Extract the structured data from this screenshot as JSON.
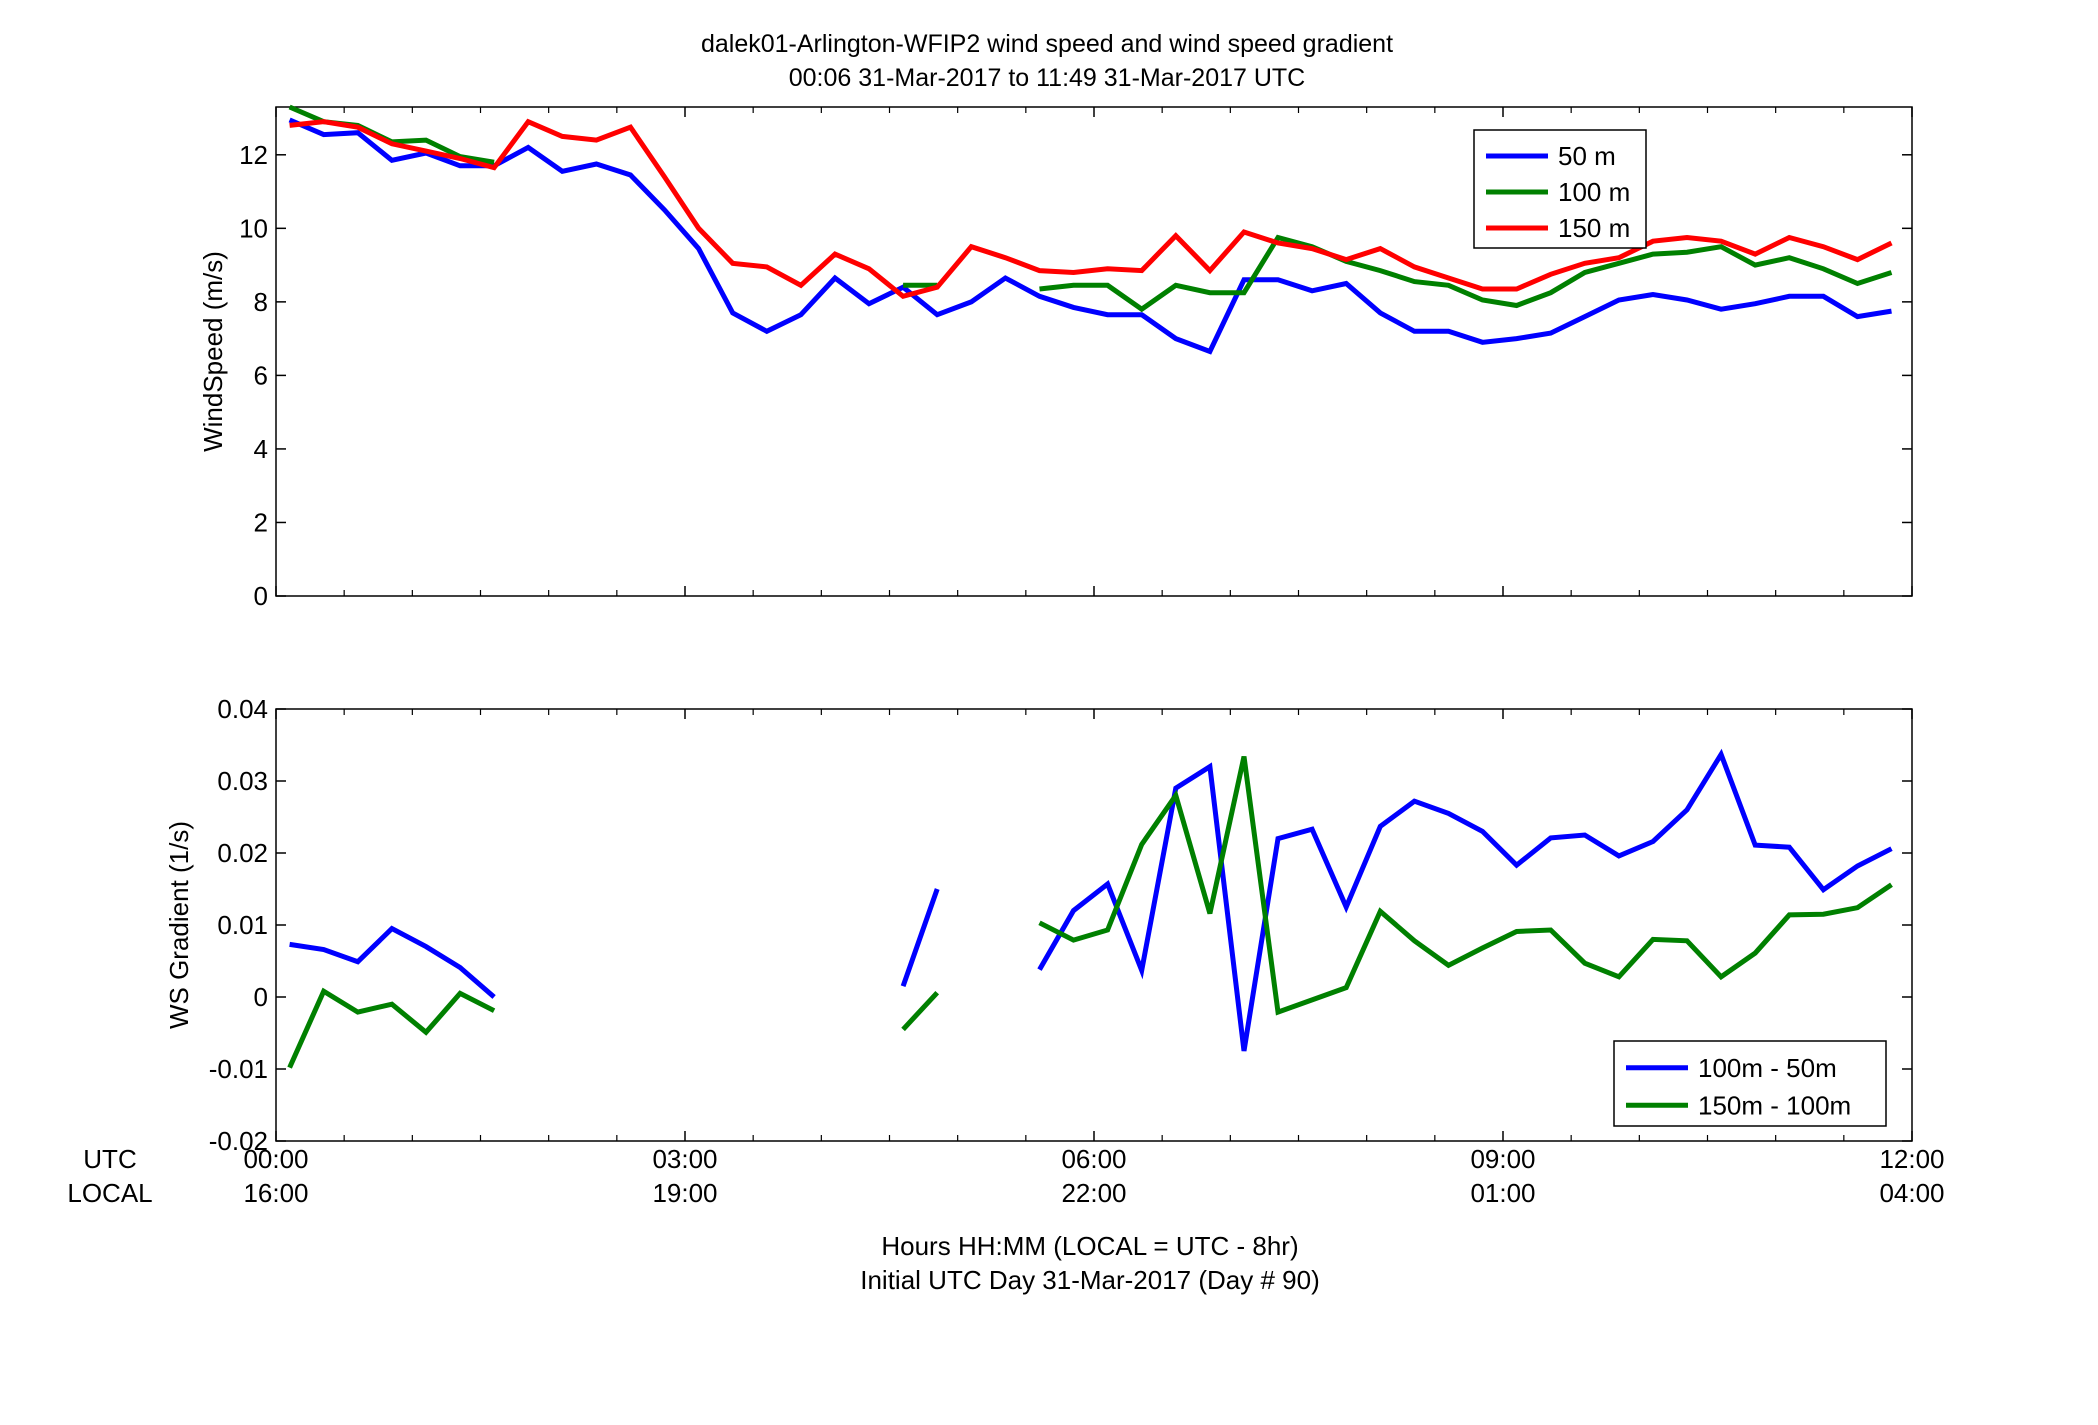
{
  "figure": {
    "title_line1": "dalek01-Arlington-WFIP2  wind speed and wind speed gradient",
    "title_line2": "00:06 31-Mar-2017 to 11:49 31-Mar-2017  UTC",
    "row_label_utc": "UTC",
    "row_label_local": "LOCAL",
    "xlabel_line1": "Hours HH:MM  (LOCAL = UTC - 8hr)",
    "xlabel_line2": "Initial UTC Day 31-Mar-2017 (Day # 90)"
  },
  "chart_data": [
    {
      "type": "line",
      "ylabel": "WindSpeed (m/s)",
      "xlim": [
        0,
        12
      ],
      "ylim": [
        0,
        13.3
      ],
      "x_unit": "hours UTC",
      "x_ticks": [
        0,
        3,
        6,
        9,
        12
      ],
      "x_tick_labels_utc": [
        "00:00",
        "03:00",
        "06:00",
        "09:00",
        "12:00"
      ],
      "x_tick_labels_local": [
        "16:00",
        "19:00",
        "22:00",
        "01:00",
        "04:00"
      ],
      "y_ticks": [
        0,
        2,
        4,
        6,
        8,
        10,
        12
      ],
      "y_tick_labels": [
        "0",
        "2",
        "4",
        "6",
        "8",
        "10",
        "12"
      ],
      "legend_position": "top-right",
      "grid": false,
      "x": [
        0.1,
        0.35,
        0.6,
        0.85,
        1.1,
        1.35,
        1.6,
        1.85,
        2.1,
        2.35,
        2.6,
        2.85,
        3.1,
        3.35,
        3.6,
        3.85,
        4.1,
        4.35,
        4.6,
        4.85,
        5.1,
        5.35,
        5.6,
        5.85,
        6.1,
        6.35,
        6.6,
        6.85,
        7.1,
        7.35,
        7.6,
        7.85,
        8.1,
        8.35,
        8.6,
        8.85,
        9.1,
        9.35,
        9.6,
        9.85,
        10.1,
        10.35,
        10.6,
        10.85,
        11.1,
        11.35,
        11.6,
        11.85
      ],
      "series": [
        {
          "name": "50 m",
          "color": "#0000ff",
          "values": [
            12.95,
            12.55,
            12.6,
            11.85,
            12.05,
            11.7,
            11.7,
            12.2,
            11.55,
            11.75,
            11.45,
            10.5,
            9.45,
            7.7,
            7.2,
            7.65,
            8.65,
            7.95,
            8.4,
            7.65,
            8.0,
            8.65,
            8.15,
            7.85,
            7.65,
            7.65,
            7.0,
            6.65,
            8.6,
            8.6,
            8.3,
            8.5,
            7.7,
            7.2,
            7.2,
            6.9,
            7.0,
            7.15,
            7.6,
            8.05,
            8.2,
            8.05,
            7.8,
            7.95,
            8.15,
            8.15,
            7.6,
            7.75
          ]
        },
        {
          "name": "100 m",
          "color": "#008000",
          "values": [
            13.3,
            12.9,
            12.8,
            12.35,
            12.4,
            11.95,
            11.8,
            null,
            null,
            null,
            null,
            null,
            null,
            null,
            null,
            null,
            null,
            null,
            8.45,
            8.45,
            null,
            null,
            8.35,
            8.45,
            8.45,
            7.8,
            8.45,
            8.25,
            8.25,
            9.75,
            9.5,
            9.1,
            8.85,
            8.55,
            8.45,
            8.05,
            7.9,
            8.25,
            8.8,
            9.05,
            9.3,
            9.35,
            9.5,
            9.0,
            9.2,
            8.9,
            8.5,
            8.8
          ]
        },
        {
          "name": "150 m",
          "color": "#ff0000",
          "values": [
            12.8,
            12.9,
            12.75,
            12.3,
            12.1,
            11.9,
            11.65,
            12.9,
            12.5,
            12.4,
            12.75,
            11.4,
            10.0,
            9.05,
            8.95,
            8.45,
            9.3,
            8.9,
            8.15,
            8.4,
            9.5,
            9.2,
            8.85,
            8.8,
            8.9,
            8.85,
            9.8,
            8.85,
            9.9,
            9.6,
            9.45,
            9.15,
            9.45,
            8.95,
            8.65,
            8.35,
            8.35,
            8.75,
            9.05,
            9.2,
            9.65,
            9.75,
            9.65,
            9.3,
            9.75,
            9.5,
            9.15,
            9.6
          ]
        }
      ]
    },
    {
      "type": "line",
      "ylabel": "WS Gradient (1/s)",
      "xlim": [
        0,
        12
      ],
      "ylim": [
        -0.02,
        0.04
      ],
      "x_unit": "hours UTC",
      "x_ticks": [
        0,
        3,
        6,
        9,
        12
      ],
      "y_ticks": [
        -0.02,
        -0.01,
        0,
        0.01,
        0.02,
        0.03,
        0.04
      ],
      "y_tick_labels": [
        "-0.02",
        "-0.01",
        "0",
        "0.01",
        "0.02",
        "0.03",
        "0.04"
      ],
      "legend_position": "bottom-right",
      "grid": false,
      "x": [
        0.1,
        0.35,
        0.6,
        0.85,
        1.1,
        1.35,
        1.6,
        1.85,
        2.1,
        2.35,
        2.6,
        2.85,
        3.1,
        3.35,
        3.6,
        3.85,
        4.1,
        4.35,
        4.6,
        4.85,
        5.1,
        5.35,
        5.6,
        5.85,
        6.1,
        6.35,
        6.6,
        6.85,
        7.1,
        7.35,
        7.6,
        7.85,
        8.1,
        8.35,
        8.6,
        8.85,
        9.1,
        9.35,
        9.6,
        9.85,
        10.1,
        10.35,
        10.6,
        10.85,
        11.1,
        11.35,
        11.6,
        11.85
      ],
      "series": [
        {
          "name": "100m - 50m",
          "color": "#0000ff",
          "values": [
            0.0073,
            0.0066,
            0.0049,
            0.0095,
            0.007,
            0.0041,
            0.0,
            null,
            null,
            null,
            null,
            null,
            null,
            null,
            null,
            null,
            null,
            null,
            0.0015,
            0.015,
            null,
            null,
            0.0038,
            0.012,
            0.0157,
            0.0037,
            0.029,
            0.032,
            -0.0075,
            0.022,
            0.0233,
            0.0125,
            0.0237,
            0.0272,
            0.0255,
            0.023,
            0.0183,
            0.0221,
            0.0225,
            0.0196,
            0.0216,
            0.026,
            0.0337,
            0.0211,
            0.0208,
            0.0149,
            0.0182,
            0.0206
          ]
        },
        {
          "name": "150m - 100m",
          "color": "#008000",
          "values": [
            -0.0098,
            0.0008,
            -0.0021,
            -0.001,
            -0.0049,
            0.0005,
            -0.0019,
            null,
            null,
            null,
            null,
            null,
            null,
            null,
            null,
            null,
            null,
            null,
            -0.0045,
            0.0006,
            null,
            null,
            0.0103,
            0.0079,
            0.0093,
            0.0212,
            0.028,
            0.0116,
            0.0334,
            -0.0021,
            -0.0004,
            0.0013,
            0.0119,
            0.0078,
            0.0044,
            0.0068,
            0.0091,
            0.0093,
            0.0047,
            0.0028,
            0.008,
            0.0078,
            0.0028,
            0.0061,
            0.0114,
            0.0115,
            0.0124,
            0.0156
          ]
        }
      ]
    }
  ]
}
